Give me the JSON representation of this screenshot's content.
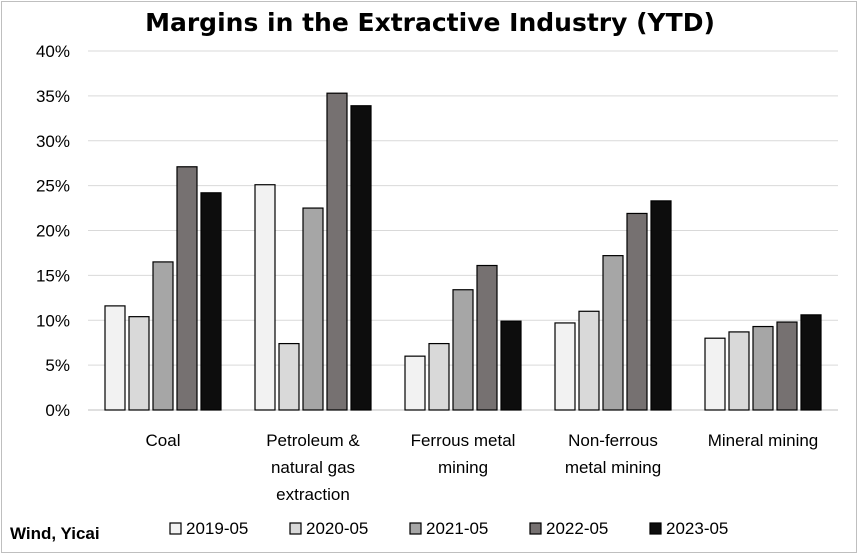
{
  "chart_data": {
    "type": "bar",
    "title": "Margins in the Extractive Industry (YTD)",
    "source": "Wind, Yicai",
    "categories": [
      [
        "Coal"
      ],
      [
        "Petroleum &",
        "natural gas",
        "extraction"
      ],
      [
        "Ferrous metal",
        "mining"
      ],
      [
        "Non-ferrous",
        "metal mining"
      ],
      [
        "Mineral mining"
      ]
    ],
    "series": [
      {
        "name": "2019-05",
        "color": "#f2f2f2",
        "values": [
          11.6,
          25.1,
          6.0,
          9.7,
          8.0
        ]
      },
      {
        "name": "2020-05",
        "color": "#d9d9d9",
        "values": [
          10.4,
          7.4,
          7.4,
          11.0,
          8.7
        ]
      },
      {
        "name": "2021-05",
        "color": "#a6a6a6",
        "values": [
          16.5,
          22.5,
          13.4,
          17.2,
          9.3
        ]
      },
      {
        "name": "2022-05",
        "color": "#767171",
        "values": [
          27.1,
          35.3,
          16.1,
          21.9,
          9.8
        ]
      },
      {
        "name": "2023-05",
        "color": "#0d0d0d",
        "values": [
          24.2,
          33.9,
          9.9,
          23.3,
          10.6
        ]
      }
    ],
    "ylim": [
      0,
      40
    ],
    "yticks": [
      "0%",
      "5%",
      "10%",
      "15%",
      "20%",
      "25%",
      "30%",
      "35%",
      "40%"
    ],
    "grid": true,
    "legend_position": "bottom"
  }
}
